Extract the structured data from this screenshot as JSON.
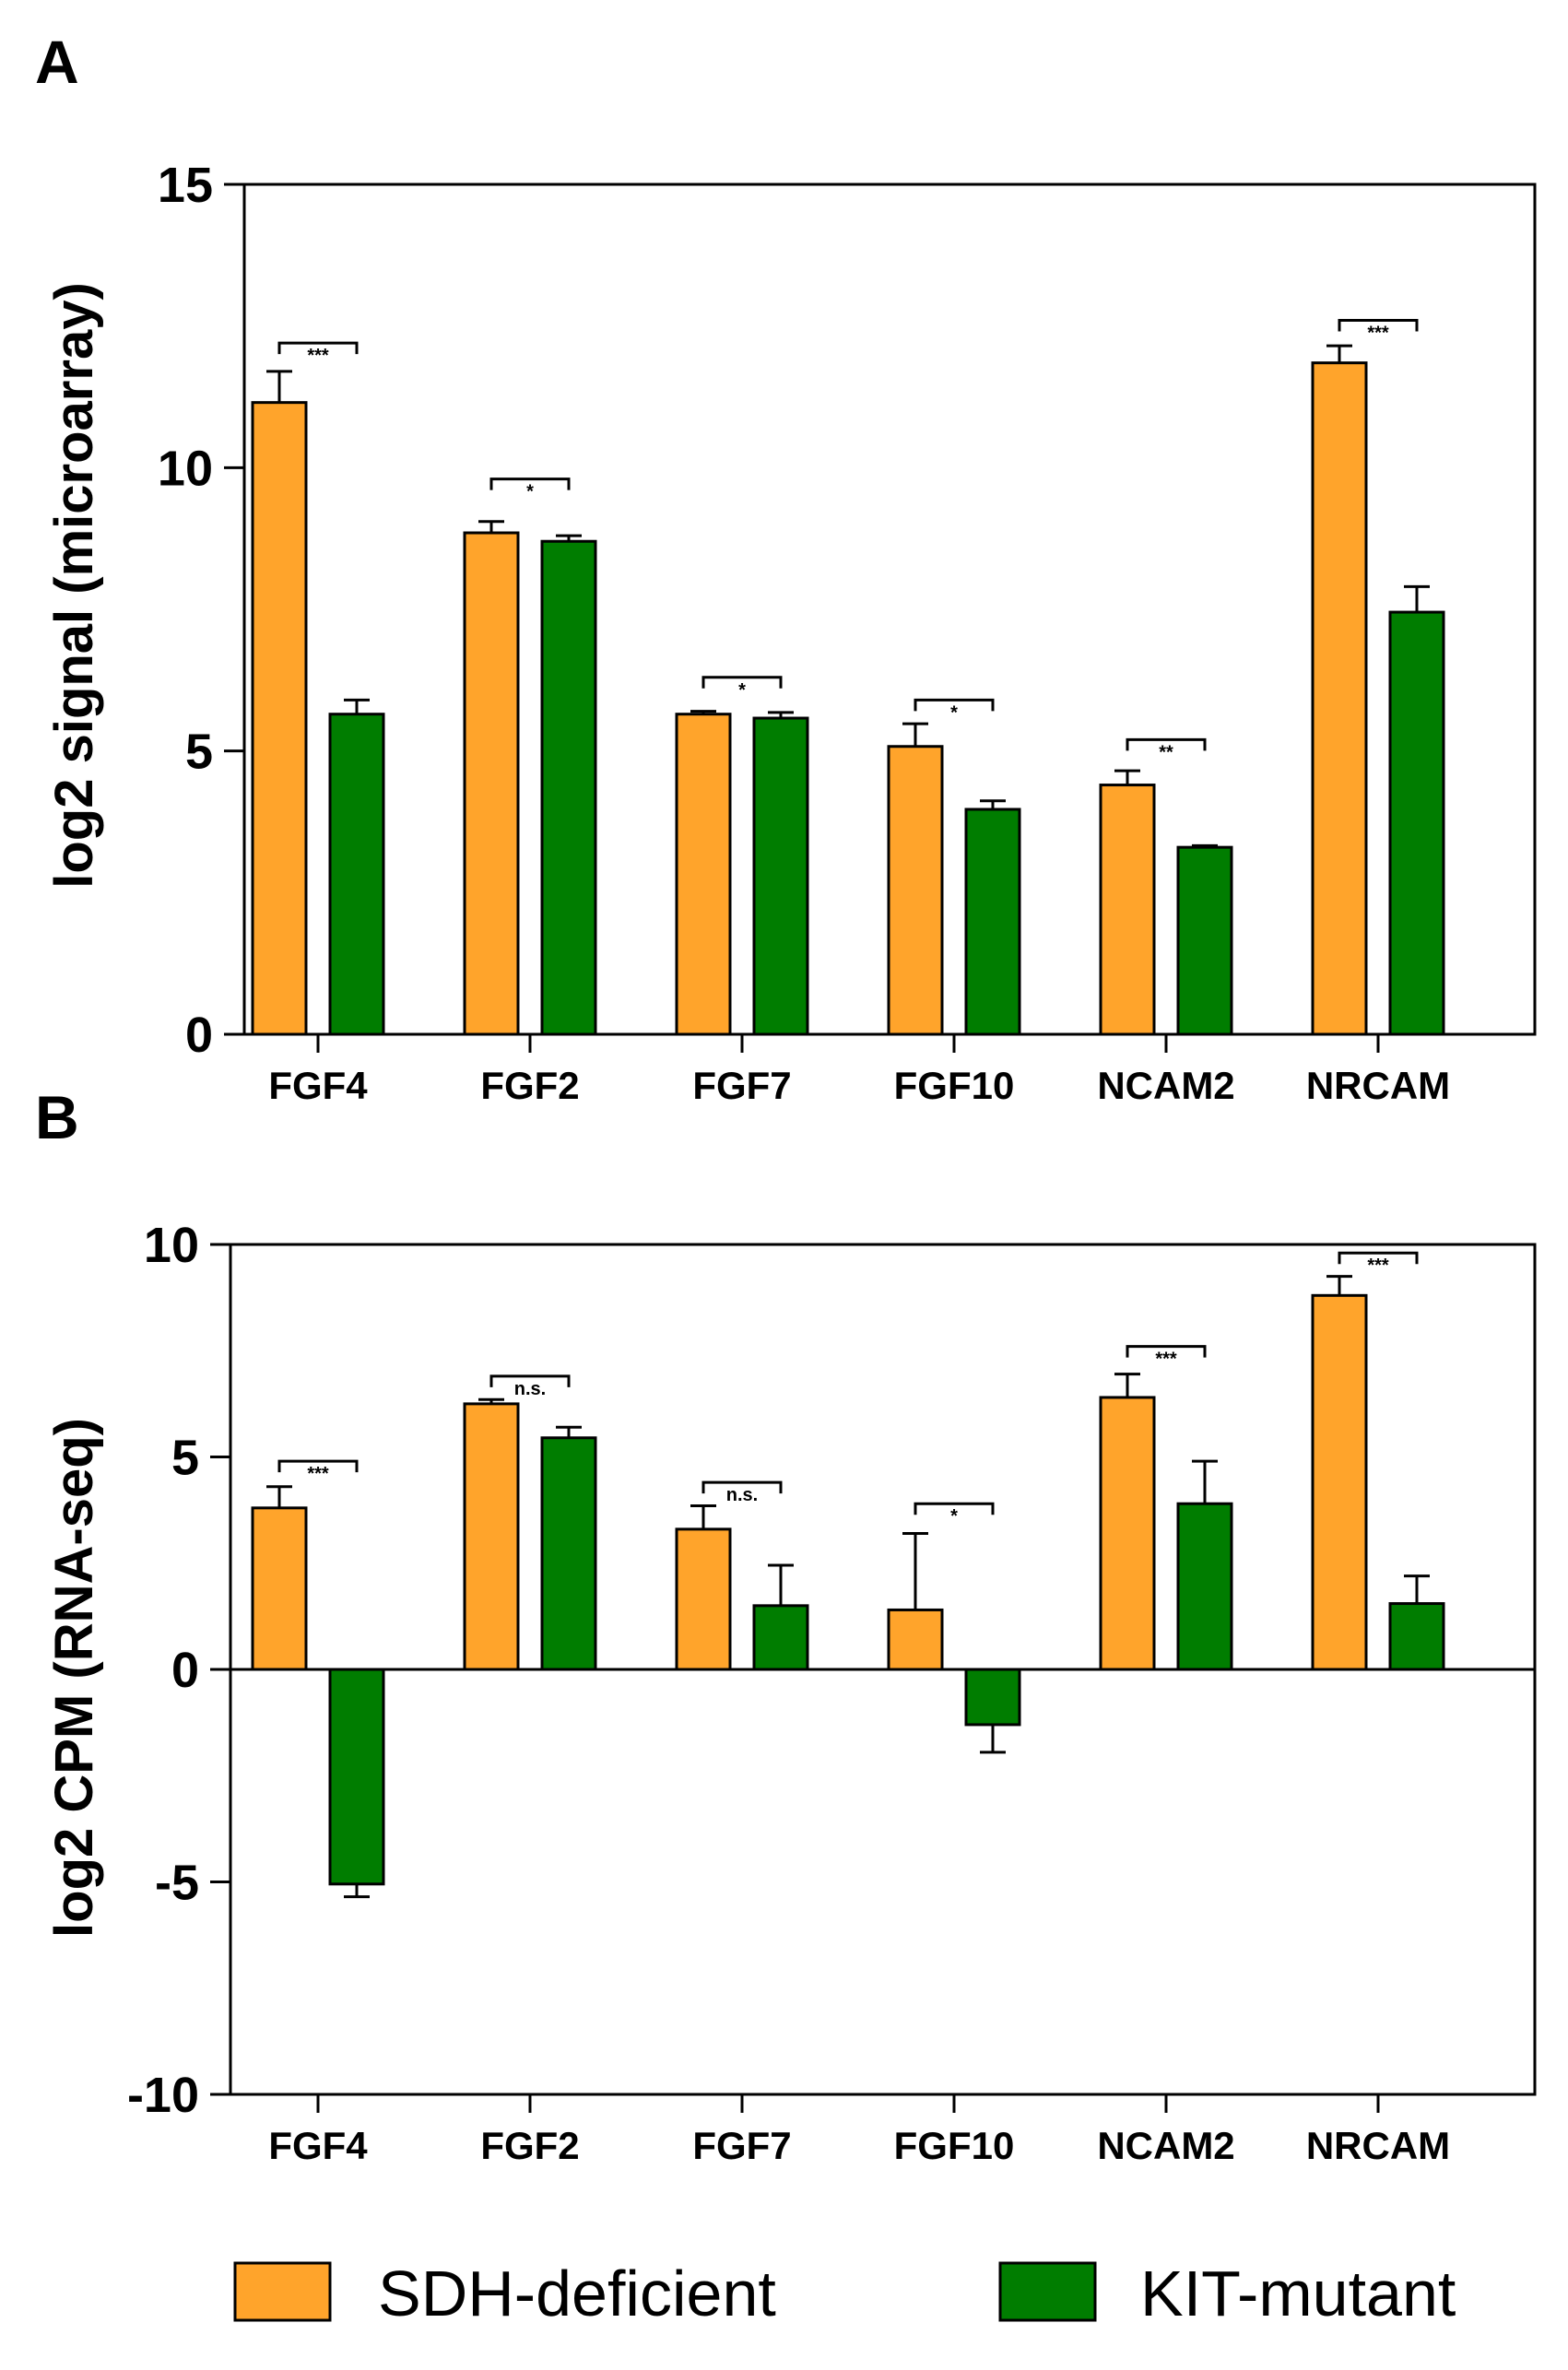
{
  "legend": {
    "items": [
      {
        "label": "SDH-deficient",
        "color": "#FFA42B"
      },
      {
        "label": "KIT-mutant",
        "color": "#007D00"
      }
    ]
  },
  "chart_data": [
    {
      "panel": "A",
      "type": "bar",
      "ylabel": "log2 signal (microarray)",
      "ylim": [
        0,
        15
      ],
      "yticks": [
        "0",
        "5",
        "10",
        "15"
      ],
      "categories": [
        "FGF4",
        "FGF2",
        "FGF7",
        "FGF10",
        "NCAM2",
        "NRCAM"
      ],
      "series": [
        {
          "name": "SDH-deficient",
          "values": [
            11.15,
            8.85,
            5.65,
            5.08,
            4.4,
            11.85
          ],
          "errors": [
            0.55,
            0.2,
            0.05,
            0.4,
            0.25,
            0.3
          ]
        },
        {
          "name": "KIT-mutant",
          "values": [
            5.65,
            8.7,
            5.58,
            3.97,
            3.3,
            7.45
          ],
          "errors": [
            0.25,
            0.1,
            0.1,
            0.15,
            0.03,
            0.45
          ]
        }
      ],
      "significance": [
        "***",
        "*",
        "*",
        "*",
        "**",
        "***"
      ],
      "sig_y": [
        12.2,
        9.8,
        6.3,
        5.9,
        5.2,
        12.6
      ]
    },
    {
      "panel": "B",
      "type": "bar",
      "ylabel": "log2 CPM (RNA-seq)",
      "ylim": [
        -10,
        10
      ],
      "yticks": [
        "-10",
        "-5",
        "0",
        "5",
        "10"
      ],
      "categories": [
        "FGF4",
        "FGF2",
        "FGF7",
        "FGF10",
        "NCAM2",
        "NRCAM"
      ],
      "series": [
        {
          "name": "SDH-deficient",
          "values": [
            3.8,
            6.25,
            3.3,
            1.4,
            6.4,
            8.8
          ],
          "errors": [
            0.5,
            0.1,
            0.55,
            1.8,
            0.55,
            0.45
          ]
        },
        {
          "name": "KIT-mutant",
          "values": [
            -5.05,
            5.45,
            1.5,
            -1.3,
            3.9,
            1.55
          ],
          "errors": [
            0.3,
            0.25,
            0.95,
            0.65,
            1.0,
            0.65
          ]
        }
      ],
      "significance": [
        "***",
        "n.s.",
        "n.s.",
        "*",
        "***",
        "***"
      ],
      "sig_y": [
        4.9,
        6.9,
        4.4,
        3.9,
        7.6,
        9.8
      ]
    }
  ]
}
